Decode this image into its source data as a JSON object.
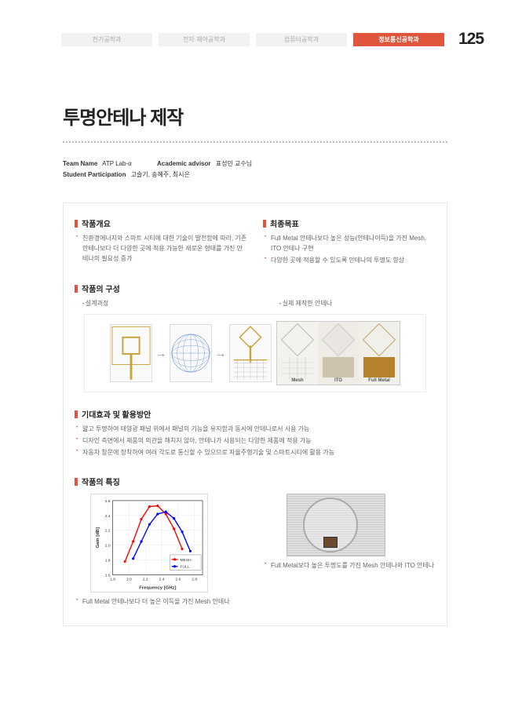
{
  "tabs": {
    "items": [
      "전기공학과",
      "전자·제어공학과",
      "컴퓨터공학과",
      "정보통신공학과"
    ],
    "active_index": 3
  },
  "page_number": "125",
  "title": "투명안테나 제작",
  "meta": {
    "team_name_label": "Team Name",
    "team_name": "ATP Lab-α",
    "advisor_label": "Academic advisor",
    "advisor": "표성민 교수님",
    "participation_label": "Student Participation",
    "participation": "고슬기, 송혜주, 최시은"
  },
  "overview": {
    "heading": "작품개요",
    "bullets": [
      "친환경에너지와 스마트 시티에 대한 기술이 발전함에 따라, 기존 안테나보다 더 다양한 곳에 적용 가능한 새로운 형태를 가진 안테나의 필요성 증가"
    ]
  },
  "goal": {
    "heading": "최종목표",
    "bullets": [
      "Full Metal 안테나보다 높은 성능(안테나이득)을 가진 Mesh, ITO 안테나 구현",
      "다양한 곳에 적용할 수 있도록 안테나의 투명도 향상"
    ]
  },
  "composition": {
    "heading": "작품의 구성",
    "labels": {
      "left": "설계과정",
      "right": "실제 제작한 안테나"
    },
    "samples": [
      "Mesh",
      "ITO",
      "Full Metal"
    ],
    "design_colors": {
      "gold": "#c9a23a",
      "blue": "#5b8bd4",
      "grid": "#cfcfcf"
    }
  },
  "effects": {
    "heading": "기대효과 및 활용방안",
    "bullets": [
      "얇고 투명하여 태양광 패널 위에서 패널의 기능을 유지함과 동시에 안테나로서 사용 가능",
      "디자인 측면에서 제품의 외관을 해치지 않아, 안테나가 사용되는 다양한 제품에 적용 가능",
      "자동차 창문에 장착하여 여러 각도로 통신할 수 있으므로 자율주행기술 및 스마트시티에 활용 가능"
    ]
  },
  "features": {
    "heading": "작품의 특징",
    "chart": {
      "xlabel": "Frequency [GHz]",
      "ylabel": "Gain [dB]",
      "xlim": [
        1.8,
        2.9
      ],
      "ylim": [
        1.6,
        2.6
      ],
      "xticks": [
        1.8,
        2.0,
        2.2,
        2.4,
        2.6,
        2.8
      ],
      "yticks": [
        1.6,
        1.8,
        2.0,
        2.2,
        2.4,
        2.6
      ],
      "series": [
        {
          "name": "MESH",
          "color": "#ff0000",
          "values": [
            [
              1.95,
              1.78
            ],
            [
              2.05,
              2.05
            ],
            [
              2.15,
              2.35
            ],
            [
              2.25,
              2.52
            ],
            [
              2.35,
              2.53
            ],
            [
              2.45,
              2.42
            ],
            [
              2.55,
              2.22
            ],
            [
              2.65,
              1.95
            ]
          ]
        },
        {
          "name": "FULL",
          "color": "#0000ff",
          "values": [
            [
              2.05,
              1.82
            ],
            [
              2.15,
              2.05
            ],
            [
              2.25,
              2.28
            ],
            [
              2.35,
              2.42
            ],
            [
              2.45,
              2.45
            ],
            [
              2.55,
              2.36
            ],
            [
              2.65,
              2.18
            ],
            [
              2.75,
              1.92
            ]
          ]
        }
      ],
      "axis_fontsize": 5,
      "title_fontsize": 6,
      "grid_color": "#e8e8e8",
      "bg": "#ffffff"
    },
    "caption_left": "Full Metal 안테나보다 더 높은 이득을 가진 Mesh 안테나",
    "caption_right": "Full Metal보다 높은 투명도를 가진 Mesh 안테나와 ITO 안테나"
  }
}
